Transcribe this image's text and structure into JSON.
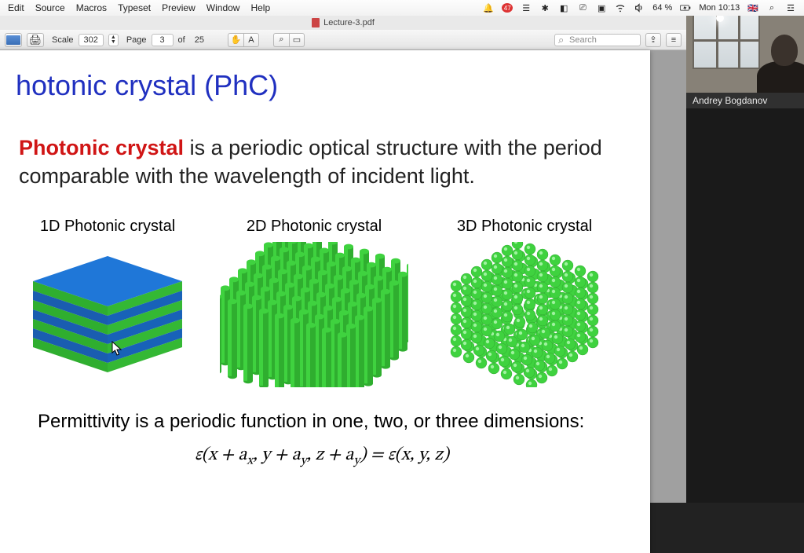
{
  "menubar": {
    "items": [
      "Edit",
      "Source",
      "Macros",
      "Typeset",
      "Preview",
      "Window",
      "Help"
    ],
    "status": {
      "battery": "64 %",
      "charging": true,
      "clock": "Mon 10:13",
      "flag": "🇬🇧",
      "notif_badge": "47"
    }
  },
  "titlebar": {
    "filename": "Lecture-3.pdf"
  },
  "toolbar": {
    "scale_label": "Scale",
    "scale_value": "302",
    "page_label": "Page",
    "page_value": "3",
    "of_label": "of",
    "total_pages": "25",
    "search_placeholder": "Search"
  },
  "slide": {
    "title": "hotonic crystal (PhC)",
    "definition_term": "Photonic crystal",
    "definition_rest": " is a periodic optical structure with the period comparable with the wavelength of incident light.",
    "col_labels": [
      "1D Photonic crystal",
      "2D Photonic crystal",
      "3D Photonic crystal"
    ],
    "fig_colors": {
      "blue": "#1f77d8",
      "blue_dark": "#1a5db0",
      "green": "#3fd23f",
      "green_dark": "#2fae2f",
      "green_side": "#2a9a2a"
    },
    "permittivity_line": "Permittivity is a periodic function in one, two, or three dimensions:",
    "equation_html": "ε(x + a<sub>x</sub>, y + a<sub>y</sub>, z + a<sub>y</sub>) = ε(x, y, z)"
  },
  "webcam": {
    "name": "Andrey Bogdanov"
  }
}
